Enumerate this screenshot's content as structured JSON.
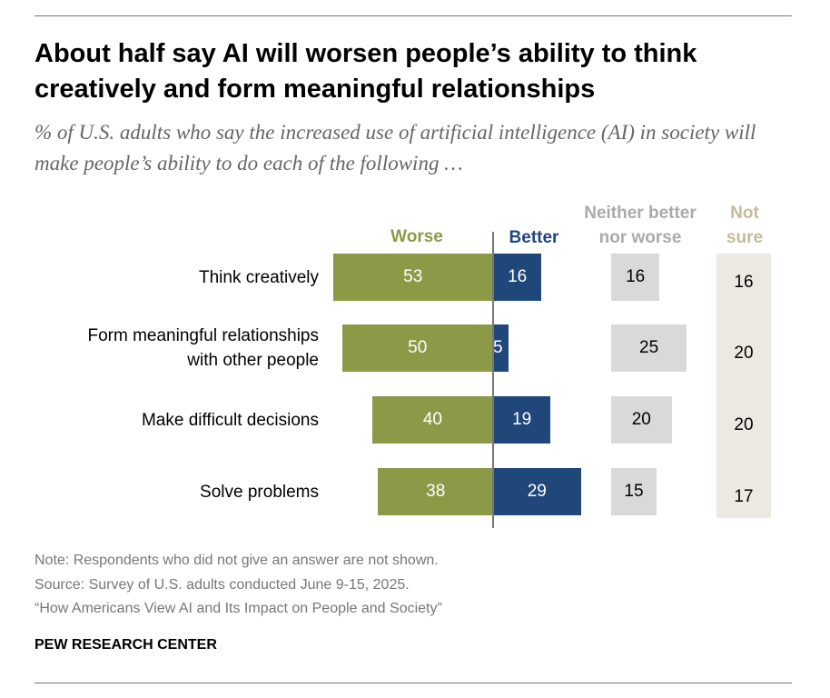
{
  "chart_data": {
    "type": "bar",
    "title": "About half say AI will worsen people’s ability to think creatively and form meaningful relationships",
    "subtitle": "% of U.S. adults who say the increased use of artificial intelligence (AI) in society will make people’s ability to do each of the following …",
    "categories": [
      "Think creatively",
      "Form meaningful relationships with other people",
      "Make difficult decisions",
      "Solve problems"
    ],
    "category_lines": [
      [
        "Think creatively"
      ],
      [
        "Form meaningful relationships",
        "with other people"
      ],
      [
        "Make difficult decisions"
      ],
      [
        "Solve problems"
      ]
    ],
    "series": [
      {
        "name": "Worse",
        "header": [
          "Worse"
        ],
        "values": [
          53,
          50,
          40,
          38
        ],
        "color": "#8c9a48"
      },
      {
        "name": "Better",
        "header": [
          "Better"
        ],
        "values": [
          16,
          5,
          19,
          29
        ],
        "color": "#1f477a"
      },
      {
        "name": "Neither better nor worse",
        "header": [
          "Neither better",
          "nor worse"
        ],
        "values": [
          16,
          25,
          20,
          15
        ],
        "color": "#d9d9d9"
      },
      {
        "name": "Not sure",
        "header": [
          "Not",
          "sure"
        ],
        "values": [
          16,
          20,
          20,
          17
        ],
        "color": "#ece9e2"
      }
    ]
  },
  "footer": {
    "note": "Note: Respondents who did not give an answer are not shown.",
    "source": "Source: Survey of U.S. adults conducted June 9-15, 2025.",
    "report": "“How Americans View AI and Its Impact on People and Society”",
    "brand": "PEW RESEARCH CENTER"
  },
  "colors": {
    "worse_header": "#8c9a48",
    "better_header": "#1f477a",
    "neither_header": "#aaaaaa",
    "notsure_header": "#c4bc9c"
  }
}
